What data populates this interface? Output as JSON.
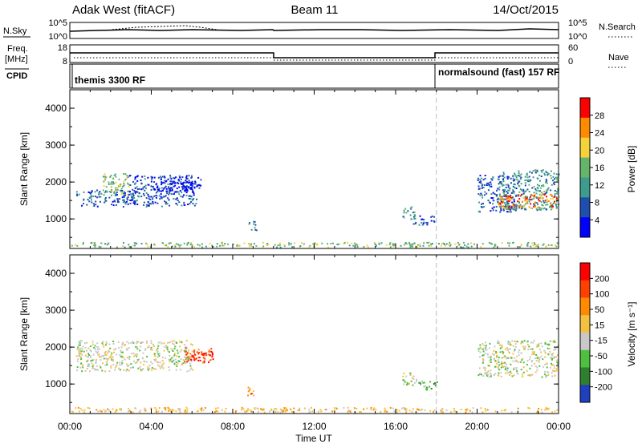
{
  "header": {
    "station": "Adak West (fitACF)",
    "beam": "Beam 11",
    "date": "14/Oct/2015"
  },
  "panels": {
    "nsky_label": "N.Sky",
    "nsearch_label": "N.Search",
    "nsky_ticks": [
      "10^5",
      "10^0"
    ],
    "nsearch_ticks": [
      "10^5",
      "10^0"
    ],
    "freq_label_line1": "Freq.",
    "freq_label_line2": "[MHz]",
    "freq_ticks": [
      "18",
      "8"
    ],
    "nave_label": "Nave",
    "nave_ticks": [
      "60",
      "0"
    ],
    "cpid_label": "CPID",
    "cpid_segments": [
      {
        "name": "themis 3300 RF"
      },
      {
        "name": "normalsound (fast) 157 RF"
      }
    ]
  },
  "chart_data": [
    {
      "type": "heatmap",
      "quantity": "Power",
      "ylabel": "Slant Range [km]",
      "colorbar_label": "Power [dB]",
      "colorbar_ticks": [
        "28",
        "24",
        "20",
        "16",
        "12",
        "8",
        "4"
      ],
      "ylim": [
        200,
        4500
      ],
      "y_ticks": [
        "4000",
        "3000",
        "2000",
        "1000"
      ],
      "xlim_hours": [
        0,
        24
      ],
      "x_ticks": [
        "00:00",
        "04:00",
        "08:00",
        "12:00",
        "16:00",
        "20:00",
        "00:00"
      ],
      "xlabel": "Time UT",
      "colors": [
        "#0000ff",
        "#1f4fae",
        "#3d9c8e",
        "#66b36a",
        "#f5d23a",
        "#ff8a00",
        "#ff0000"
      ],
      "patches": [
        {
          "t": [
            0.3,
            3.2
          ],
          "range": [
            1350,
            1800
          ],
          "level": 1
        },
        {
          "t": [
            1.6,
            2.9
          ],
          "range": [
            1650,
            2250
          ],
          "level": 3
        },
        {
          "t": [
            2.0,
            2.5
          ],
          "range": [
            1780,
            1950
          ],
          "level": 4
        },
        {
          "t": [
            2.9,
            6.2
          ],
          "range": [
            1350,
            2200
          ],
          "level": 1
        },
        {
          "t": [
            4.0,
            6.4
          ],
          "range": [
            1750,
            2150
          ],
          "level": 0
        },
        {
          "t": [
            5.6,
            6.4
          ],
          "range": [
            1700,
            2050
          ],
          "level": 0
        },
        {
          "t": [
            8.7,
            9.2
          ],
          "range": [
            700,
            950
          ],
          "level": 2
        },
        {
          "t": [
            16.3,
            16.9
          ],
          "range": [
            1000,
            1350
          ],
          "level": 2
        },
        {
          "t": [
            16.8,
            17.9
          ],
          "range": [
            850,
            1100
          ],
          "level": 1
        },
        {
          "t": [
            20.0,
            22.0
          ],
          "range": [
            1200,
            2200
          ],
          "level": 1
        },
        {
          "t": [
            21.0,
            24.0
          ],
          "range": [
            1250,
            2350
          ],
          "level": 2
        },
        {
          "t": [
            21.0,
            24.0
          ],
          "range": [
            1300,
            1700
          ],
          "level": 5
        },
        {
          "t": [
            0,
            24
          ],
          "range": [
            250,
            380
          ],
          "level": 3
        }
      ]
    },
    {
      "type": "heatmap",
      "quantity": "Velocity",
      "ylabel": "Slant Range [km]",
      "colorbar_label": "Velocity [m s⁻¹]",
      "colorbar_ticks": [
        "200",
        "100",
        "50",
        "15",
        "-15",
        "-50",
        "-100",
        "-200"
      ],
      "ylim": [
        200,
        4500
      ],
      "y_ticks": [
        "4000",
        "3000",
        "2000",
        "1000"
      ],
      "xlim_hours": [
        0,
        24
      ],
      "x_ticks": [
        "00:00",
        "04:00",
        "08:00",
        "12:00",
        "16:00",
        "20:00",
        "00:00"
      ],
      "xlabel": "Time UT",
      "colors": [
        "#1f3fbf",
        "#2f7f2f",
        "#4fbf3f",
        "#c8c8c8",
        "#f5c040",
        "#ff8a00",
        "#ff4000",
        "#ff0000"
      ],
      "patches": [
        {
          "t": [
            0.3,
            6.0
          ],
          "range": [
            1350,
            2200
          ],
          "level": 3
        },
        {
          "t": [
            5.6,
            7.0
          ],
          "range": [
            1600,
            2000
          ],
          "level": 6
        },
        {
          "t": [
            6.0,
            7.0
          ],
          "range": [
            1650,
            1850
          ],
          "level": 7
        },
        {
          "t": [
            8.7,
            9.2
          ],
          "range": [
            700,
            950
          ],
          "level": 5
        },
        {
          "t": [
            16.3,
            17.0
          ],
          "range": [
            1000,
            1350
          ],
          "level": 3
        },
        {
          "t": [
            16.8,
            18.0
          ],
          "range": [
            850,
            1100
          ],
          "level": 2
        },
        {
          "t": [
            20.0,
            24.0
          ],
          "range": [
            1200,
            2200
          ],
          "level": 3
        },
        {
          "t": [
            0,
            24
          ],
          "range": [
            250,
            380
          ],
          "level": 4
        }
      ]
    }
  ]
}
